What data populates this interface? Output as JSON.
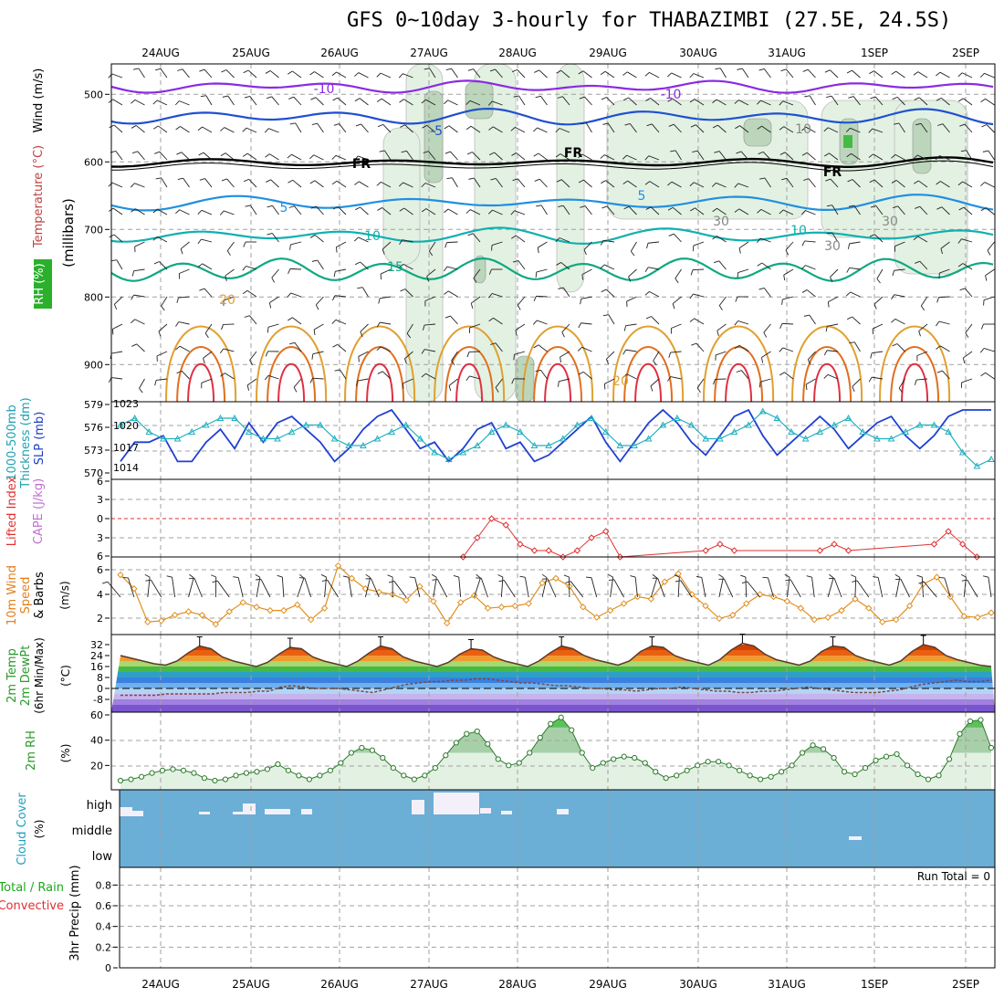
{
  "title": "GFS 0~10day 3-hourly for THABAZIMBI (27.5E, 24.5S)",
  "dates": [
    "24AUG",
    "25AUG",
    "26AUG",
    "27AUG",
    "28AUG",
    "29AUG",
    "30AUG",
    "31AUG",
    "1SEP",
    "2SEP"
  ],
  "colors": {
    "temperature": "#e04040",
    "wind": "#000000",
    "rh": "#1aa81a",
    "thickness": "#20b0c0",
    "slp": "#2040d0",
    "lifted": "#e03030",
    "cape": "#c070d0",
    "wind10m": "#e09020",
    "rh2m": "#1aa81a",
    "cloud": "#6baed6",
    "precip": "#1aa81a",
    "convective": "#e03030"
  },
  "panels": {
    "upper": {
      "ylabel": "(millibars)",
      "label_wind": "Wind (m/s)",
      "label_temp": "Temperature (°C)",
      "label_rh": "RH (%)",
      "yticks": [
        "500",
        "600",
        "700",
        "800",
        "900"
      ],
      "contour_labels": [
        "-10",
        "-10",
        "-5",
        "-5",
        "FR",
        "FR",
        "FR",
        "5",
        "5",
        "10",
        "10",
        "15",
        "20",
        "20",
        "10",
        "30",
        "30",
        "30"
      ]
    },
    "thickness": {
      "label_thick": "1000-500mb",
      "label_thick2": "Thickness (dm)",
      "label_slp": "SLP (mb)",
      "yticks_left": [
        "579",
        "576",
        "573",
        "570"
      ],
      "yticks_right": [
        "1023",
        "1020",
        "1017",
        "1014"
      ]
    },
    "stability": {
      "label_li": "Lifted Index",
      "label_cape": "CAPE (J/kg)",
      "yticks": [
        "6",
        "3",
        "0",
        "3",
        "6"
      ]
    },
    "wind10m": {
      "label1": "10m Wind",
      "label2": "Speed",
      "label3": "& Barbs",
      "unit": "(m/s)",
      "yticks": [
        "6",
        "4",
        "2"
      ]
    },
    "temp2m": {
      "label1": "2m Temp",
      "label2": "2m DewPt",
      "label3": "(6hr Min/Max)",
      "unit": "(°C)",
      "yticks": [
        "32",
        "24",
        "16",
        "8",
        "0",
        "-8"
      ]
    },
    "rh2m": {
      "label": "2m RH",
      "unit": "(%)",
      "yticks": [
        "60",
        "40",
        "20"
      ]
    },
    "cloud": {
      "label": "Cloud Cover",
      "unit": "(%)",
      "levels": [
        "high",
        "middle",
        "low"
      ]
    },
    "precip": {
      "label_total": "Total / Rain",
      "label_conv": "Convective",
      "label_unit": "3hr Precip (mm)",
      "run_total": "Run Total = 0",
      "yticks": [
        "0.8",
        "0.6",
        "0.4",
        "0.2",
        "0"
      ]
    }
  },
  "chart_data": [
    {
      "type": "line",
      "title": "1000-500mb Thickness (dm) / SLP (mb)",
      "series": [
        {
          "name": "SLP (mb)",
          "values": [
            1014,
            1017,
            1017,
            1018,
            1014,
            1014,
            1017,
            1019,
            1016,
            1020,
            1017,
            1020,
            1021,
            1019,
            1017,
            1014,
            1016,
            1019,
            1021,
            1022,
            1019,
            1016,
            1017,
            1014,
            1016,
            1019,
            1020,
            1016,
            1017,
            1014,
            1015,
            1017,
            1019,
            1021,
            1017,
            1014,
            1017,
            1020,
            1022,
            1020,
            1017,
            1015,
            1018,
            1021,
            1022,
            1018,
            1015,
            1017,
            1019,
            1021,
            1019,
            1016,
            1018,
            1020,
            1021,
            1018,
            1016,
            1018,
            1021,
            1022,
            1022,
            1022
          ]
        },
        {
          "name": "1000-500mb Thickness (dm)",
          "values": [
            576,
            577,
            575,
            574,
            574,
            575,
            576,
            577,
            577,
            575,
            574,
            574,
            575,
            576,
            576,
            574,
            573,
            573,
            574,
            575,
            576,
            574,
            572,
            571,
            572,
            573,
            575,
            576,
            575,
            573,
            573,
            574,
            576,
            577,
            575,
            573,
            573,
            574,
            576,
            577,
            576,
            574,
            574,
            575,
            576,
            578,
            577,
            575,
            574,
            575,
            576,
            577,
            575,
            574,
            574,
            575,
            576,
            576,
            575,
            572,
            570,
            571
          ]
        }
      ]
    },
    {
      "type": "line",
      "title": "Lifted Index",
      "series": [
        {
          "name": "Lifted Index",
          "values": [
            null,
            null,
            null,
            null,
            null,
            null,
            null,
            null,
            null,
            null,
            null,
            null,
            null,
            null,
            null,
            null,
            null,
            null,
            null,
            null,
            null,
            null,
            null,
            null,
            6,
            3,
            0,
            1,
            4,
            5,
            5,
            6,
            5,
            3,
            2,
            6,
            null,
            null,
            null,
            null,
            null,
            5,
            4,
            5,
            null,
            null,
            null,
            null,
            null,
            5,
            4,
            5,
            null,
            null,
            null,
            null,
            null,
            4,
            2,
            4,
            6,
            null
          ]
        }
      ]
    },
    {
      "type": "line",
      "title": "10m Wind Speed",
      "ylabel": "(m/s)",
      "series": [
        {
          "name": "10m Wind Speed",
          "values": [
            5.3,
            4.1,
            1.2,
            1.3,
            1.8,
            2.1,
            1.8,
            1,
            2.1,
            2.9,
            2.5,
            2.2,
            2.2,
            2.7,
            1.4,
            2.4,
            6.1,
            5,
            4.1,
            3.8,
            3.6,
            3.1,
            4.3,
            3,
            1.1,
            2.9,
            3.5,
            2.4,
            2.5,
            2.6,
            2.8,
            4.6,
            5,
            4.3,
            2.5,
            1.6,
            2.2,
            2.8,
            3.4,
            3.2,
            4.7,
            5.4,
            3.6,
            2.6,
            1.5,
            1.8,
            2.8,
            3.6,
            3.4,
            3,
            2.4,
            1.4,
            1.6,
            2.2,
            3.2,
            2.4,
            1.2,
            1.4,
            2.6,
            4.5,
            5.1,
            3.4,
            1.7,
            1.6,
            2
          ]
        }
      ]
    },
    {
      "type": "line",
      "title": "2m Temp / 2m DewPt",
      "ylabel": "(°C)",
      "series": [
        {
          "name": "2m Temp",
          "values": [
            24,
            22,
            20,
            18,
            17,
            20,
            26,
            31,
            29,
            23,
            20,
            18,
            16,
            19,
            25,
            30,
            29,
            23,
            20,
            18,
            16,
            20,
            26,
            31,
            29,
            23,
            20,
            18,
            16,
            19,
            25,
            29,
            28,
            23,
            20,
            18,
            16,
            20,
            26,
            31,
            29,
            24,
            21,
            19,
            17,
            20,
            27,
            31,
            30,
            24,
            21,
            19,
            17,
            21,
            28,
            33,
            31,
            25,
            21,
            19,
            17,
            20,
            27,
            31,
            30,
            24,
            21,
            19,
            17,
            20,
            27,
            32,
            30,
            24,
            21,
            19,
            17,
            16
          ]
        },
        {
          "name": "2m DewPt",
          "values": [
            -5,
            -5,
            -5,
            -5,
            -4,
            -4,
            -4,
            -4,
            -4,
            -3,
            -3,
            -3,
            -2,
            -2,
            1,
            2,
            1,
            0,
            0,
            0,
            -1,
            -2,
            -3,
            -1,
            1,
            3,
            4,
            5,
            5,
            6,
            6,
            7,
            7,
            6,
            5,
            4,
            4,
            3,
            2,
            2,
            1,
            0,
            0,
            -1,
            -1,
            -2,
            -1,
            0,
            0,
            1,
            0,
            -1,
            -2,
            -2,
            -3,
            -3,
            -2,
            -2,
            -1,
            0,
            1,
            0,
            -1,
            -2,
            -3,
            -3,
            -3,
            -2,
            -1,
            1,
            3,
            4,
            5,
            6,
            5,
            5,
            6
          ]
        }
      ]
    },
    {
      "type": "area",
      "title": "2m RH",
      "ylabel": "(%)",
      "series": [
        {
          "name": "2m RH",
          "values": [
            8,
            9,
            11,
            14,
            16,
            17,
            16,
            14,
            10,
            8,
            9,
            12,
            14,
            15,
            17,
            21,
            16,
            12,
            9,
            12,
            16,
            22,
            30,
            34,
            32,
            26,
            18,
            12,
            9,
            12,
            18,
            28,
            38,
            45,
            47,
            37,
            25,
            20,
            22,
            30,
            42,
            53,
            58,
            48,
            30,
            18,
            22,
            25,
            27,
            26,
            22,
            15,
            10,
            12,
            16,
            20,
            23,
            23,
            20,
            16,
            12,
            9,
            11,
            15,
            20,
            30,
            36,
            33,
            26,
            15,
            13,
            18,
            24,
            27,
            29,
            20,
            13,
            9,
            12,
            25,
            45,
            55,
            56,
            34
          ]
        }
      ]
    },
    {
      "type": "heatmap",
      "title": "Cloud Cover",
      "ylabel": "(%)",
      "categories": [
        "high",
        "middle",
        "low"
      ]
    },
    {
      "type": "bar",
      "title": "3hr Precip (mm)",
      "ylim": [
        0,
        0.9
      ],
      "series": [
        {
          "name": "Total / Rain",
          "values": [
            0,
            0,
            0,
            0,
            0,
            0,
            0,
            0,
            0,
            0
          ]
        },
        {
          "name": "Convective",
          "values": [
            0,
            0,
            0,
            0,
            0,
            0,
            0,
            0,
            0,
            0
          ]
        }
      ]
    }
  ]
}
